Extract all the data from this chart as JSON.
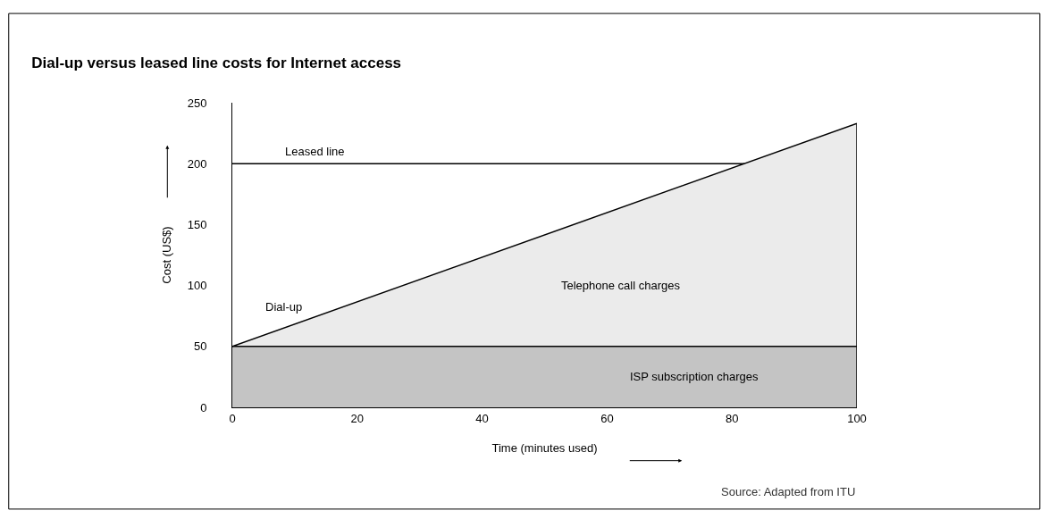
{
  "chart_data": {
    "type": "area",
    "title": "Dial-up versus leased line costs for Internet access",
    "xlabel": "Time (minutes used)",
    "ylabel": "Cost (US$)",
    "xlim": [
      0,
      100
    ],
    "ylim": [
      0,
      250
    ],
    "xticks": [
      0,
      20,
      40,
      60,
      80,
      100
    ],
    "yticks": [
      0,
      50,
      100,
      150,
      200,
      250
    ],
    "legend": false,
    "series": [
      {
        "name": "ISP subscription charges",
        "color": "#c4c4c4",
        "x": [
          0,
          100
        ],
        "values": [
          50,
          50
        ]
      },
      {
        "name": "Dial-up",
        "color": "#ebebeb",
        "x": [
          0,
          100
        ],
        "values": [
          50,
          233
        ]
      },
      {
        "name": "Leased line",
        "type": "line",
        "color": "#000000",
        "x": [
          0,
          82
        ],
        "values": [
          200,
          200
        ]
      }
    ],
    "annotations": [
      "Telephone call charges",
      "Source: Adapted from ITU"
    ]
  }
}
